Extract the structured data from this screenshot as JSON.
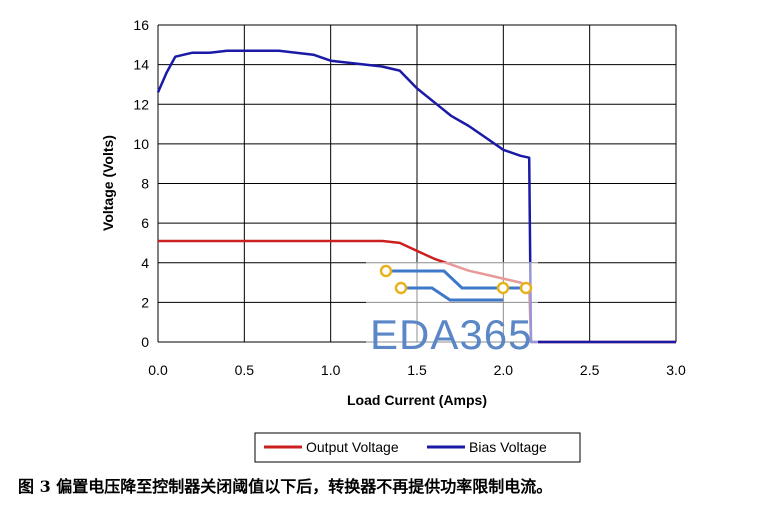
{
  "chart_data": {
    "type": "line",
    "xlabel": "Load Current (Amps)",
    "ylabel": "Voltage (Volts)",
    "xlim": [
      0,
      3.0
    ],
    "ylim": [
      0,
      16
    ],
    "x_ticks": [
      "0.0",
      "0.5",
      "1.0",
      "1.5",
      "2.0",
      "2.5",
      "3.0"
    ],
    "y_ticks": [
      "0",
      "2",
      "4",
      "6",
      "8",
      "10",
      "12",
      "14",
      "16"
    ],
    "grid": true,
    "legend_position": "bottom",
    "series": [
      {
        "name": "Output Voltage",
        "color": "#cc1f1f",
        "points": [
          [
            0.0,
            5.1
          ],
          [
            0.5,
            5.1
          ],
          [
            1.0,
            5.1
          ],
          [
            1.3,
            5.1
          ],
          [
            1.4,
            5.0
          ],
          [
            1.5,
            4.6
          ],
          [
            1.6,
            4.2
          ],
          [
            1.7,
            3.9
          ],
          [
            1.8,
            3.6
          ],
          [
            1.9,
            3.4
          ],
          [
            2.0,
            3.2
          ],
          [
            2.1,
            3.0
          ],
          [
            2.15,
            2.8
          ],
          [
            2.16,
            0.0
          ],
          [
            3.0,
            0.0
          ]
        ]
      },
      {
        "name": "Bias Voltage",
        "color": "#1a1aa6",
        "points": [
          [
            0.0,
            12.6
          ],
          [
            0.05,
            13.6
          ],
          [
            0.1,
            14.4
          ],
          [
            0.2,
            14.6
          ],
          [
            0.3,
            14.6
          ],
          [
            0.4,
            14.7
          ],
          [
            0.5,
            14.7
          ],
          [
            0.7,
            14.7
          ],
          [
            0.8,
            14.6
          ],
          [
            0.9,
            14.5
          ],
          [
            1.0,
            14.2
          ],
          [
            1.2,
            14.0
          ],
          [
            1.3,
            13.9
          ],
          [
            1.4,
            13.7
          ],
          [
            1.5,
            12.8
          ],
          [
            1.6,
            12.1
          ],
          [
            1.7,
            11.4
          ],
          [
            1.8,
            10.9
          ],
          [
            1.9,
            10.3
          ],
          [
            2.0,
            9.7
          ],
          [
            2.1,
            9.4
          ],
          [
            2.15,
            9.3
          ],
          [
            2.16,
            0.0
          ],
          [
            3.0,
            0.0
          ]
        ]
      }
    ]
  },
  "caption": "图 3 偏置电压降至控制器关闭阈值以下后，转换器不再提供功率限制电流。",
  "watermark": {
    "text": "EDA365",
    "color": "#5b87c7",
    "trace_color": "#e8b21e"
  }
}
